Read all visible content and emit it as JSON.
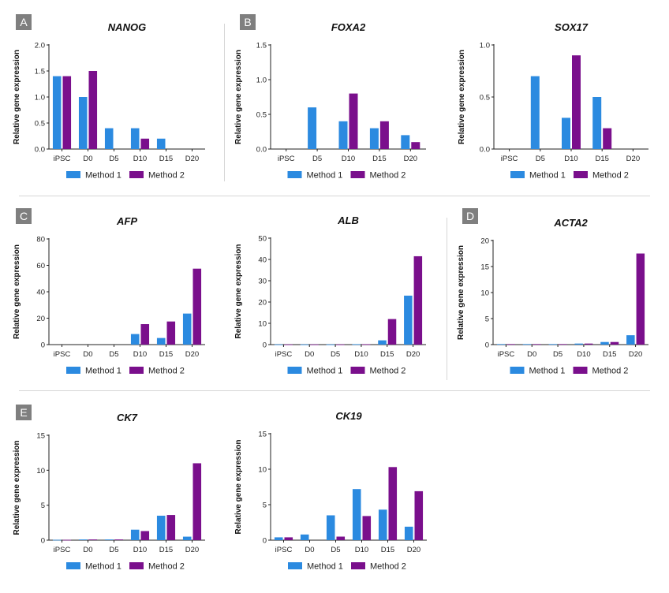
{
  "panel_labels": [
    "A",
    "B",
    "C",
    "D",
    "E"
  ],
  "colors": {
    "method1": "#2b8ae0",
    "method2": "#7a0f8c",
    "axis": "#222222"
  },
  "chart_data": [
    {
      "type": "bar",
      "title": "NANOG",
      "ylabel": "Relative gene expression",
      "categories": [
        "iPSC",
        "D0",
        "D5",
        "D10",
        "D15",
        "D20"
      ],
      "ylim": [
        0,
        2.0
      ],
      "yticks": [
        "0.0",
        "0.5",
        "1.0",
        "1.5",
        "2.0"
      ],
      "series": [
        {
          "name": "Method 1",
          "values": [
            1.4,
            1.0,
            0.4,
            0.4,
            0.2,
            0
          ]
        },
        {
          "name": "Method 2",
          "values": [
            1.4,
            1.5,
            0,
            0.2,
            0,
            0
          ]
        }
      ]
    },
    {
      "type": "bar",
      "title": "FOXA2",
      "ylabel": "Relative gene expression",
      "categories": [
        "iPSC",
        "D5",
        "D10",
        "D15",
        "D20"
      ],
      "ylim": [
        0,
        1.5
      ],
      "yticks": [
        "0.0",
        "0.5",
        "1.0",
        "1.5"
      ],
      "series": [
        {
          "name": "Method 1",
          "values": [
            0,
            0.6,
            0.4,
            0.3,
            0.2
          ]
        },
        {
          "name": "Method 2",
          "values": [
            0,
            0,
            0.8,
            0.4,
            0.1
          ]
        }
      ]
    },
    {
      "type": "bar",
      "title": "SOX17",
      "ylabel": "Relative gene expression",
      "categories": [
        "iPSC",
        "D5",
        "D10",
        "D15",
        "D20"
      ],
      "ylim": [
        0,
        1.0
      ],
      "yticks": [
        "0.0",
        "0.5",
        "1.0"
      ],
      "series": [
        {
          "name": "Method 1",
          "values": [
            0,
            0.7,
            0.3,
            0.5,
            0
          ]
        },
        {
          "name": "Method 2",
          "values": [
            0,
            0,
            0.9,
            0.2,
            0
          ]
        }
      ]
    },
    {
      "type": "bar",
      "title": "AFP",
      "ylabel": "Relative gene expression",
      "categories": [
        "iPSC",
        "D0",
        "D5",
        "D10",
        "D15",
        "D20"
      ],
      "ylim": [
        0,
        80
      ],
      "yticks": [
        "0",
        "20",
        "40",
        "60",
        "80"
      ],
      "series": [
        {
          "name": "Method 1",
          "values": [
            0,
            0,
            0,
            8,
            5,
            23.5
          ]
        },
        {
          "name": "Method 2",
          "values": [
            0,
            0,
            0,
            15.5,
            17.5,
            57.5
          ]
        }
      ]
    },
    {
      "type": "bar",
      "title": "ALB",
      "ylabel": "Relative gene expression",
      "categories": [
        "iPSC",
        "D0",
        "D5",
        "D10",
        "D15",
        "D20"
      ],
      "ylim": [
        0,
        50
      ],
      "yticks": [
        "0",
        "10",
        "20",
        "30",
        "40",
        "50"
      ],
      "series": [
        {
          "name": "Method 1",
          "values": [
            0.1,
            0.1,
            0.1,
            0.2,
            2,
            23
          ]
        },
        {
          "name": "Method 2",
          "values": [
            0.1,
            0.1,
            0.1,
            0.2,
            12,
            41.5
          ]
        }
      ]
    },
    {
      "type": "bar",
      "title": "ACTA2",
      "ylabel": "Relative gene expression",
      "categories": [
        "iPSC",
        "D0",
        "D5",
        "D10",
        "D15",
        "D20"
      ],
      "ylim": [
        0,
        20
      ],
      "yticks": [
        "0",
        "5",
        "10",
        "15",
        "20"
      ],
      "series": [
        {
          "name": "Method 1",
          "values": [
            0.1,
            0.1,
            0.1,
            0.2,
            0.5,
            1.8
          ]
        },
        {
          "name": "Method 2",
          "values": [
            0.1,
            0.1,
            0.1,
            0.2,
            0.5,
            17.5
          ]
        }
      ]
    },
    {
      "type": "bar",
      "title": "CK7",
      "ylabel": "Relative gene expression",
      "categories": [
        "iPSC",
        "D0",
        "D5",
        "D10",
        "D15",
        "D20"
      ],
      "ylim": [
        0,
        15
      ],
      "yticks": [
        "0",
        "5",
        "10",
        "15"
      ],
      "series": [
        {
          "name": "Method 1",
          "values": [
            0.05,
            0.1,
            0.1,
            1.5,
            3.5,
            0.5
          ]
        },
        {
          "name": "Method 2",
          "values": [
            0.05,
            0.1,
            0.1,
            1.3,
            3.6,
            11
          ]
        }
      ]
    },
    {
      "type": "bar",
      "title": "CK19",
      "ylabel": "Relative gene expression",
      "categories": [
        "iPSC",
        "D0",
        "D5",
        "D10",
        "D15",
        "D20"
      ],
      "ylim": [
        0,
        15
      ],
      "yticks": [
        "0",
        "5",
        "10",
        "15"
      ],
      "series": [
        {
          "name": "Method 1",
          "values": [
            0.4,
            0.8,
            3.5,
            7.2,
            4.3,
            1.9
          ]
        },
        {
          "name": "Method 2",
          "values": [
            0.4,
            0,
            0.5,
            3.4,
            10.3,
            6.9
          ]
        }
      ]
    }
  ]
}
